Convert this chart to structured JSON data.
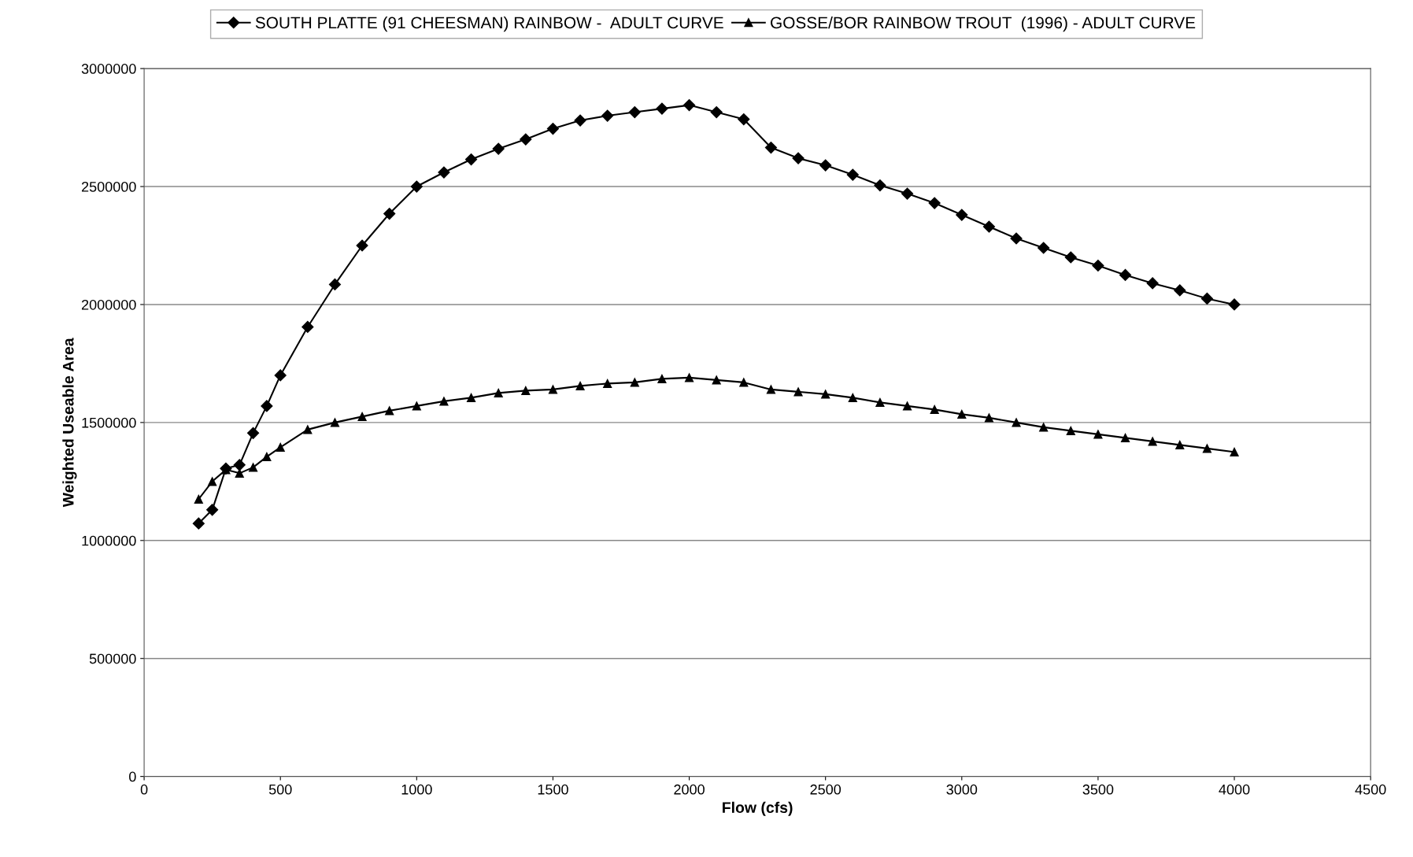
{
  "chart_data": {
    "type": "line",
    "xlabel": "Flow (cfs)",
    "ylabel": "Weighted Useable Area",
    "x": [
      200,
      250,
      300,
      350,
      400,
      450,
      500,
      600,
      700,
      800,
      900,
      1000,
      1100,
      1200,
      1300,
      1400,
      1500,
      1600,
      1700,
      1800,
      1900,
      2000,
      2100,
      2200,
      2300,
      2400,
      2500,
      2600,
      2700,
      2800,
      2900,
      3000,
      3100,
      3200,
      3300,
      3400,
      3500,
      3600,
      3700,
      3800,
      3900,
      4000
    ],
    "series": [
      {
        "name": "SOUTH PLATTE (91 CHEESMAN) RAINBOW -  ADULT CURVE",
        "color": "#000000",
        "marker": "diamond",
        "values": [
          1072000,
          1130000,
          1305000,
          1320000,
          1455000,
          1570000,
          1700000,
          1905000,
          2085000,
          2250000,
          2385000,
          2500000,
          2560000,
          2615000,
          2660000,
          2700000,
          2745000,
          2780000,
          2800000,
          2815000,
          2830000,
          2845000,
          2815000,
          2785000,
          2665000,
          2620000,
          2590000,
          2550000,
          2505000,
          2470000,
          2430000,
          2380000,
          2330000,
          2280000,
          2240000,
          2200000,
          2165000,
          2125000,
          2090000,
          2060000,
          2025000,
          2000000
        ]
      },
      {
        "name": "GOSSE/BOR RAINBOW TROUT  (1996) - ADULT CURVE",
        "color": "#000000",
        "marker": "triangle",
        "values": [
          1175000,
          1250000,
          1300000,
          1285000,
          1310000,
          1355000,
          1395000,
          1470000,
          1500000,
          1525000,
          1550000,
          1570000,
          1590000,
          1605000,
          1625000,
          1635000,
          1640000,
          1655000,
          1665000,
          1670000,
          1685000,
          1690000,
          1680000,
          1670000,
          1640000,
          1630000,
          1620000,
          1605000,
          1585000,
          1570000,
          1555000,
          1535000,
          1520000,
          1500000,
          1480000,
          1465000,
          1450000,
          1435000,
          1420000,
          1405000,
          1390000,
          1375000
        ]
      }
    ],
    "xlim": [
      0,
      4500
    ],
    "xticks": [
      0,
      500,
      1000,
      1500,
      2000,
      2500,
      3000,
      3500,
      4000,
      4500
    ],
    "ylim": [
      0,
      3000000
    ],
    "yticks": [
      0,
      500000,
      1000000,
      1500000,
      2000000,
      2500000,
      3000000
    ],
    "grid": "y",
    "legend": "top",
    "line_style": "solid"
  }
}
